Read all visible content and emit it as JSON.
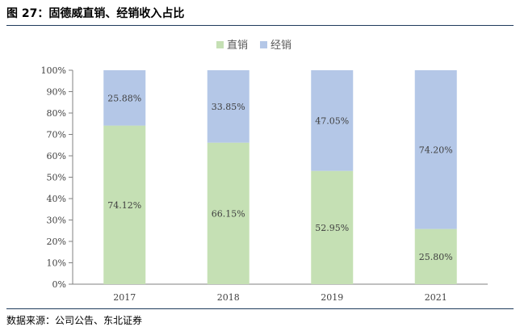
{
  "figure": {
    "title": "图 27：固德威直销、经销收入占比",
    "source": "数据来源：公司公告、东北证券"
  },
  "chart_data": {
    "type": "bar",
    "stacked": true,
    "categories": [
      "2017",
      "2018",
      "2019",
      "2021"
    ],
    "series": [
      {
        "name": "直销",
        "color": "#c5e0b4",
        "values": [
          74.12,
          66.15,
          52.95,
          25.8
        ],
        "labels": [
          "74.12%",
          "66.15%",
          "52.95%",
          "25.80%"
        ]
      },
      {
        "name": "经销",
        "color": "#b4c7e7",
        "values": [
          25.88,
          33.85,
          47.05,
          74.2
        ],
        "labels": [
          "25.88%",
          "33.85%",
          "47.05%",
          "74.20%"
        ]
      }
    ],
    "ylim": [
      0,
      100
    ],
    "yticks": [
      "0%",
      "10%",
      "20%",
      "30%",
      "40%",
      "50%",
      "60%",
      "70%",
      "80%",
      "90%",
      "100%"
    ],
    "legend_position": "top-center",
    "grid": false
  }
}
